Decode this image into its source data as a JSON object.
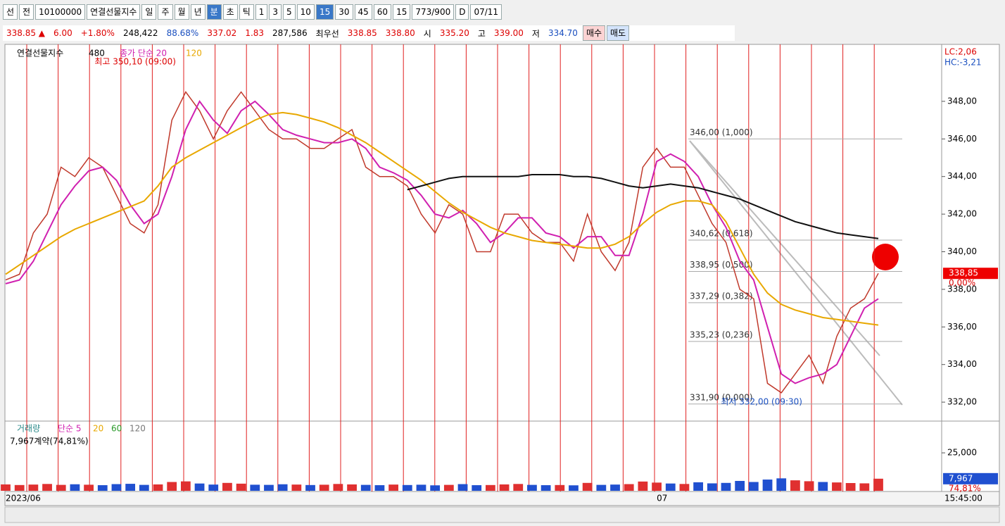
{
  "toolbar": {
    "items": [
      "선",
      "전",
      "10100000",
      "연결선물지수",
      "일",
      "주",
      "월",
      "년",
      "분",
      "초",
      "틱",
      "1",
      "3",
      "5",
      "10",
      "15",
      "30",
      "45",
      "60",
      "15",
      "773/900",
      "D",
      "07/11"
    ]
  },
  "quote": {
    "items": [
      "338.85 ▲",
      "6.00",
      "+1.80%",
      "248,422",
      "88.68%",
      "337.02",
      "1.83",
      "287,586",
      "최우선",
      "338.85",
      "338.80",
      "시",
      "335.20",
      "고",
      "339.00",
      "저",
      "334.70"
    ],
    "buy": "매수",
    "sell": "매도"
  },
  "chart_data": [
    {
      "type": "candlestick",
      "legend": [
        "연결선물지수",
        "480",
        "종가 단순 20",
        "120"
      ],
      "corner": [
        "LC:2,06",
        "HC:-3,21"
      ],
      "x": [
        "2023/06",
        null,
        null,
        null,
        null,
        null,
        null,
        null,
        null,
        null,
        null,
        null,
        null,
        null,
        null,
        null,
        null,
        null,
        null,
        null,
        null,
        null,
        null,
        null,
        null,
        null,
        null,
        null,
        null,
        null,
        null,
        null,
        null,
        null,
        null,
        null,
        null,
        null,
        null,
        null,
        null,
        null,
        null,
        null,
        null,
        null,
        null,
        "07",
        null,
        null,
        null,
        null,
        null,
        null,
        null,
        null,
        null,
        null,
        null,
        null,
        null,
        null,
        null,
        null
      ],
      "series": [
        {
          "name": "연결선물지수",
          "color": "#c0392b",
          "values": [
            338.5,
            338.8,
            341,
            342,
            344.5,
            344,
            345,
            344.5,
            343,
            341.5,
            341,
            342.5,
            347,
            348.5,
            347.5,
            346,
            347.5,
            348.5,
            347.5,
            346.5,
            346,
            346,
            345.5,
            345.5,
            346,
            346.5,
            344.5,
            344,
            344,
            343.5,
            342,
            341,
            342.5,
            342,
            340,
            340,
            342,
            342,
            341,
            340.5,
            340.5,
            339.5,
            342,
            340,
            339,
            340.5,
            344.5,
            345.5,
            344.5,
            344.5,
            343,
            341.5,
            340.5,
            338,
            337.5,
            333,
            332.5,
            333.5,
            334.5,
            333,
            335.5,
            337,
            337.5,
            338.85
          ]
        },
        {
          "name": "종가 단순 20",
          "color": "#d020b0",
          "values": [
            338.3,
            338.5,
            339.5,
            341,
            342.5,
            343.5,
            344.3,
            344.5,
            343.8,
            342.5,
            341.5,
            342,
            344,
            346.5,
            348,
            347,
            346.3,
            347.5,
            348,
            347.3,
            346.5,
            346.2,
            346,
            345.8,
            345.8,
            346,
            345.5,
            344.5,
            344.2,
            343.8,
            343,
            342,
            341.8,
            342.2,
            341.5,
            340.5,
            341,
            341.8,
            341.8,
            341,
            340.8,
            340.2,
            340.8,
            340.8,
            339.8,
            339.8,
            342,
            344.8,
            345.2,
            344.8,
            344,
            342.5,
            341.3,
            339.5,
            338.5,
            336,
            333.5,
            333,
            333.3,
            333.5,
            334,
            335.5,
            337,
            337.5
          ]
        },
        {
          "name": "120",
          "color": "#e8a800",
          "values": [
            338.8,
            339.3,
            339.8,
            340.3,
            340.8,
            341.2,
            341.5,
            341.8,
            342.1,
            342.4,
            342.7,
            343.5,
            344.5,
            345,
            345.4,
            345.8,
            346.2,
            346.6,
            347,
            347.3,
            347.4,
            347.3,
            347.1,
            346.9,
            346.6,
            346.2,
            345.8,
            345.3,
            344.8,
            344.3,
            343.8,
            343.2,
            342.6,
            342.1,
            341.7,
            341.3,
            341,
            340.8,
            340.6,
            340.5,
            340.4,
            340.3,
            340.2,
            340.2,
            340.4,
            340.8,
            341.5,
            342.1,
            342.5,
            342.7,
            342.7,
            342.5,
            341.6,
            340.2,
            338.8,
            337.8,
            337.2,
            336.9,
            336.7,
            336.5,
            336.4,
            336.3,
            336.2,
            336.1
          ]
        },
        {
          "name": "480",
          "color": "#111111",
          "values": [
            null,
            null,
            null,
            null,
            null,
            null,
            null,
            null,
            null,
            null,
            null,
            null,
            null,
            null,
            null,
            null,
            null,
            null,
            null,
            null,
            null,
            null,
            null,
            null,
            null,
            null,
            null,
            null,
            null,
            343.3,
            343.5,
            343.7,
            343.9,
            344,
            344,
            344,
            344,
            344,
            344.1,
            344.1,
            344.1,
            344,
            344,
            343.9,
            343.7,
            343.5,
            343.4,
            343.5,
            343.6,
            343.5,
            343.4,
            343.2,
            343,
            342.8,
            342.5,
            342.2,
            341.9,
            341.6,
            341.4,
            341.2,
            341,
            340.9,
            340.8,
            340.7
          ]
        }
      ],
      "ylim": [
        331.03,
        351.03
      ],
      "yticks": [
        {
          "value": 332,
          "label": "332,00"
        },
        {
          "value": 334,
          "label": "334,00"
        },
        {
          "value": 336,
          "label": "336,00"
        },
        {
          "value": 338,
          "label": "338,00"
        },
        {
          "value": 340,
          "label": "340,00"
        },
        {
          "value": 342,
          "label": "342,00"
        },
        {
          "value": 344,
          "label": "344,00"
        },
        {
          "value": 346,
          "label": "346,00"
        },
        {
          "value": 348,
          "label": "348,00"
        }
      ],
      "fib": [
        {
          "value": 346.0,
          "label": "346,00 (1,000)"
        },
        {
          "value": 340.62,
          "label": "340,62 (0,618)"
        },
        {
          "value": 338.95,
          "label": "338,95 (0,500)"
        },
        {
          "value": 337.29,
          "label": "337,29 (0,382)"
        },
        {
          "value": 335.23,
          "label": "335,23 (0,236)"
        },
        {
          "value": 331.9,
          "label": "331,90 (0,000)"
        }
      ],
      "max": {
        "value": 350.1,
        "label": "최고 350,10 (09:00)"
      },
      "min": {
        "value": 332.0,
        "label": "최저 332,00 (09:30)"
      },
      "current": {
        "value": 338.85,
        "label": "338,85",
        "change": "0,00%"
      }
    },
    {
      "type": "bar",
      "legend": [
        "거래량",
        "단순 5",
        "20",
        "60",
        "120"
      ],
      "info": "7,967계약(74,81%)",
      "values": [
        4200,
        3800,
        4100,
        4500,
        3900,
        4300,
        4000,
        3700,
        4400,
        4600,
        3900,
        4200,
        5800,
        6200,
        4800,
        4100,
        5200,
        4700,
        4000,
        3900,
        4300,
        4100,
        3800,
        4000,
        4500,
        4200,
        3900,
        3700,
        4100,
        3800,
        4000,
        3600,
        3900,
        4400,
        3700,
        3800,
        4200,
        4500,
        3900,
        3700,
        3800,
        3600,
        5200,
        3900,
        4100,
        4400,
        6100,
        5400,
        4800,
        4500,
        5600,
        4900,
        5200,
        6500,
        5800,
        7400,
        8200,
        6900,
        6300,
        5800,
        5500,
        5100,
        4900,
        7967
      ],
      "ylim": [
        0,
        45000
      ],
      "yticks": [
        {
          "value": 25000,
          "label": "25,000"
        }
      ],
      "current": {
        "value": 7967,
        "label": "7,967",
        "ratio": "74,81%"
      }
    }
  ],
  "time": "15:45:00"
}
